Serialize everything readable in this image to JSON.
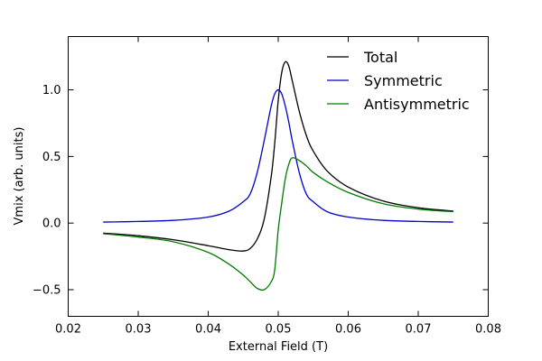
{
  "chart_data": {
    "type": "line",
    "title": "",
    "xlabel": "External Field (T)",
    "ylabel": "Vmix (arb. units)",
    "xlim": [
      0.02,
      0.08
    ],
    "ylim": [
      -0.7,
      1.4
    ],
    "xticks": [
      0.02,
      0.03,
      0.04,
      0.05,
      0.06,
      0.07,
      0.08
    ],
    "xtick_labels": [
      "0.02",
      "0.03",
      "0.04",
      "0.05",
      "0.06",
      "0.07",
      "0.08"
    ],
    "yticks": [
      -0.5,
      0.0,
      0.5,
      1.0
    ],
    "ytick_labels": [
      "−0.5",
      "0.0",
      "0.5",
      "1.0"
    ],
    "grid": false,
    "legend_position": "top-right",
    "x": [
      0.025,
      0.03,
      0.035,
      0.04,
      0.043,
      0.045,
      0.046,
      0.047,
      0.048,
      0.049,
      0.0495,
      0.05,
      0.0505,
      0.051,
      0.0515,
      0.052,
      0.053,
      0.054,
      0.055,
      0.057,
      0.06,
      0.065,
      0.07,
      0.075
    ],
    "series": [
      {
        "name": "Total",
        "color": "#000000",
        "values": [
          -0.075,
          -0.095,
          -0.125,
          -0.17,
          -0.2,
          -0.21,
          -0.19,
          -0.12,
          0.03,
          0.35,
          0.6,
          0.92,
          1.13,
          1.21,
          1.18,
          1.07,
          0.84,
          0.66,
          0.54,
          0.39,
          0.27,
          0.165,
          0.115,
          0.09
        ]
      },
      {
        "name": "Symmetric",
        "color": "#0000cc",
        "values": [
          0.0075,
          0.012,
          0.02,
          0.045,
          0.09,
          0.16,
          0.22,
          0.38,
          0.62,
          0.88,
          0.97,
          1.0,
          0.97,
          0.88,
          0.76,
          0.62,
          0.38,
          0.22,
          0.16,
          0.085,
          0.045,
          0.02,
          0.012,
          0.0075
        ]
      },
      {
        "name": "Antisymmetric",
        "color": "#007a00",
        "values": [
          -0.08,
          -0.105,
          -0.14,
          -0.22,
          -0.31,
          -0.39,
          -0.44,
          -0.49,
          -0.5,
          -0.44,
          -0.35,
          -0.05,
          0.15,
          0.33,
          0.44,
          0.49,
          0.47,
          0.43,
          0.38,
          0.31,
          0.23,
          0.145,
          0.105,
          0.085
        ]
      }
    ]
  }
}
